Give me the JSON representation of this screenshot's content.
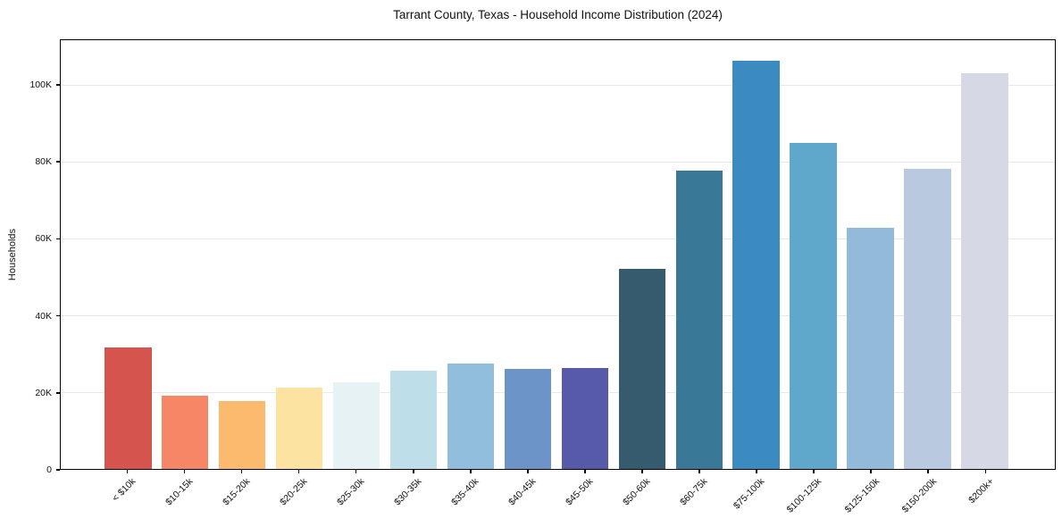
{
  "chart_data": {
    "type": "bar",
    "title": "Tarrant County, Texas - Household Income Distribution (2024)",
    "xlabel": "",
    "ylabel": "Households",
    "categories": [
      "< $10k",
      "$10-15k",
      "$15-20k",
      "$20-25k",
      "$25-30k",
      "$30-35k",
      "$35-40k",
      "$40-45k",
      "$45-50k",
      "$50-60k",
      "$60-75k",
      "$75-100k",
      "$100-125k",
      "$125-150k",
      "$150-200k",
      "$200k+"
    ],
    "values": [
      31700,
      19200,
      17700,
      21200,
      22700,
      25600,
      27500,
      26000,
      26400,
      52100,
      77700,
      106500,
      85000,
      62800,
      78300,
      103200
    ],
    "bar_colors": [
      "#d6544e",
      "#f58767",
      "#fcba6e",
      "#fde3a1",
      "#e6f2f4",
      "#bedfea",
      "#92bedd",
      "#6c94c9",
      "#565aa8",
      "#365b6e",
      "#3a7898",
      "#3b8bc0",
      "#60a7cc",
      "#94bad9",
      "#b9c9df",
      "#d7d8e6"
    ],
    "ylim": [
      0,
      111800
    ],
    "ytick_values": [
      0,
      20000,
      40000,
      60000,
      80000,
      100000
    ],
    "ytick_labels": [
      "0",
      "20K",
      "40K",
      "60K",
      "80K",
      "100K"
    ],
    "grid": "horizontal",
    "gridline_color": "#e8e8e8",
    "spine_color": "#000000",
    "text_color": "#111111",
    "background_color": "#ffffff",
    "legend": "none"
  }
}
